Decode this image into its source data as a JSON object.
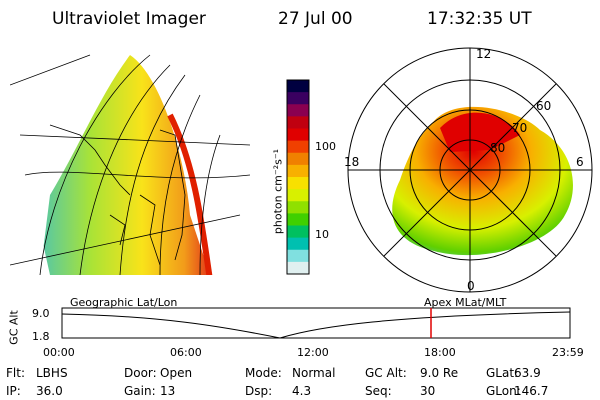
{
  "header": {
    "title": "Ultraviolet Imager",
    "date": "27 Jul 00",
    "time": "17:32:35 UT"
  },
  "colorbar": {
    "unit_label": "photon cm⁻²s⁻¹",
    "tick_labels": [
      "100",
      "10"
    ],
    "colors": [
      "#000040",
      "#3a0060",
      "#8a0050",
      "#c00010",
      "#e00000",
      "#f04000",
      "#f08000",
      "#f8b000",
      "#f8e000",
      "#d8f000",
      "#90e000",
      "#40d000",
      "#00c060",
      "#00c0b0",
      "#80e0e0",
      "#e0f0f0"
    ]
  },
  "polar_plot": {
    "lat_labels": [
      "60",
      "70",
      "80"
    ],
    "mlt_labels": [
      "12",
      "18",
      "6",
      "0"
    ]
  },
  "timeline": {
    "axis_label": "GC Alt",
    "left_label": "Geographic Lat/Lon",
    "right_label": "Apex MLat/MLT",
    "y_ticks": [
      "9.0",
      "1.8"
    ],
    "x_ticks": [
      "00:00",
      "06:00",
      "12:00",
      "18:00",
      "23:59"
    ],
    "marker_color": "#e00000"
  },
  "info": {
    "row1": [
      {
        "label": "Flt:",
        "value": "LBHS"
      },
      {
        "label": "Door:",
        "value": "Open"
      },
      {
        "label": "Mode:",
        "value": "Normal"
      },
      {
        "label": "GC Alt:",
        "value": "9.0 Re"
      },
      {
        "label": "GLat:",
        "value": "63.9"
      }
    ],
    "row2": [
      {
        "label": "IP:",
        "value": "36.0"
      },
      {
        "label": "Gain:",
        "value": "13"
      },
      {
        "label": "Dsp:",
        "value": "4.3"
      },
      {
        "label": "Seq:",
        "value": "30"
      },
      {
        "label": "GLon:",
        "value": "146.7"
      }
    ]
  }
}
